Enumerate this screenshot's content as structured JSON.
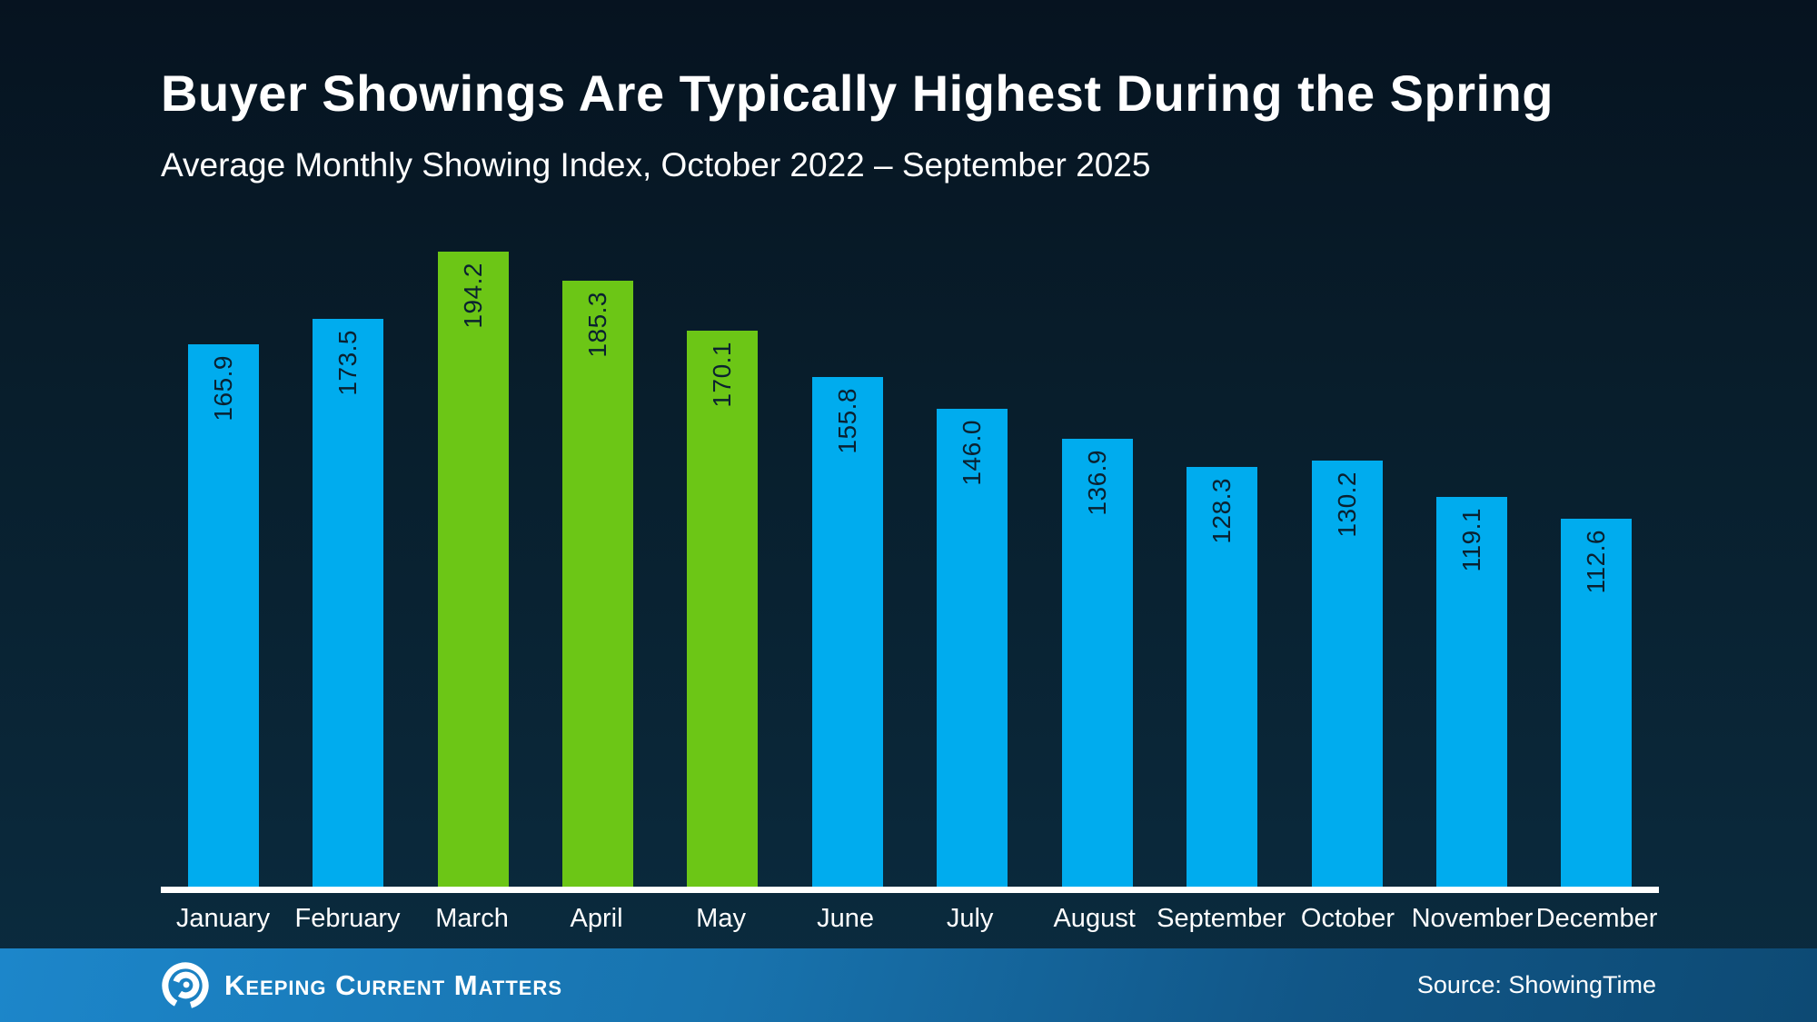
{
  "header": {
    "title": "Buyer Showings Are Typically Highest During the Spring",
    "subtitle": "Average Monthly Showing Index, October 2022 – September 2025"
  },
  "chart_data": {
    "type": "bar",
    "title": "Buyer Showings Are Typically Highest During the Spring",
    "subtitle": "Average Monthly Showing Index, October 2022 – September 2025",
    "categories": [
      "January",
      "February",
      "March",
      "April",
      "May",
      "June",
      "July",
      "August",
      "September",
      "October",
      "November",
      "December"
    ],
    "values": [
      165.9,
      173.5,
      194.2,
      185.3,
      170.1,
      155.8,
      146.0,
      136.9,
      128.3,
      130.2,
      119.1,
      112.6
    ],
    "value_labels": [
      "165.9",
      "173.5",
      "194.2",
      "185.3",
      "170.1",
      "155.8",
      "146.0",
      "136.9",
      "128.3",
      "130.2",
      "119.1",
      "112.6"
    ],
    "bar_colors": [
      "blue",
      "blue",
      "green",
      "green",
      "green",
      "blue",
      "blue",
      "blue",
      "blue",
      "blue",
      "blue",
      "blue"
    ],
    "palette": {
      "blue": "#00ACEE",
      "green": "#6CC616"
    },
    "highlighted_months": [
      "March",
      "April",
      "May"
    ],
    "xlabel": "",
    "ylabel": "",
    "ylim": [
      0,
      200
    ],
    "grid": false,
    "legend_position": "none",
    "value_label_rotation": -90,
    "value_label_color": "#0a2130",
    "axis_color": "#ffffff"
  },
  "footer": {
    "brand": "Keeping Current Matters",
    "logo_icon": "kcm-swirl-icon",
    "source": "Source: ShowingTime",
    "accent_left": "#1c86ca",
    "accent_right": "#0d4a74"
  },
  "colors": {
    "background_top": "#061320",
    "background_bottom": "#0b2c40",
    "text": "#ffffff"
  }
}
